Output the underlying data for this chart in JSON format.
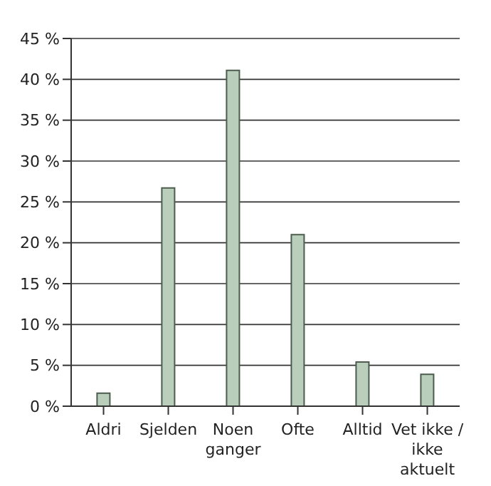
{
  "chart_data": {
    "type": "bar",
    "categories": [
      "Aldri",
      "Sjelden",
      "Noen ganger",
      "Ofte",
      "Alltid",
      "Vet ikke / ikke aktuelt"
    ],
    "values": [
      1.6,
      26.7,
      41.1,
      21,
      5.4,
      3.9
    ],
    "color": "#b9cfbb",
    "ylim": [
      0,
      45
    ],
    "yticks": [
      {
        "value": 0,
        "label": "0 %"
      },
      {
        "value": 5,
        "label": "5 %"
      },
      {
        "value": 10,
        "label": "10 %"
      },
      {
        "value": 15,
        "label": "15 %"
      },
      {
        "value": 20,
        "label": "20 %"
      },
      {
        "value": 25,
        "label": "25 %"
      },
      {
        "value": 30,
        "label": "30 %"
      },
      {
        "value": 35,
        "label": "35 %"
      },
      {
        "value": 40,
        "label": "40 %"
      },
      {
        "value": 45,
        "label": "45 %"
      }
    ],
    "grid": "y"
  }
}
